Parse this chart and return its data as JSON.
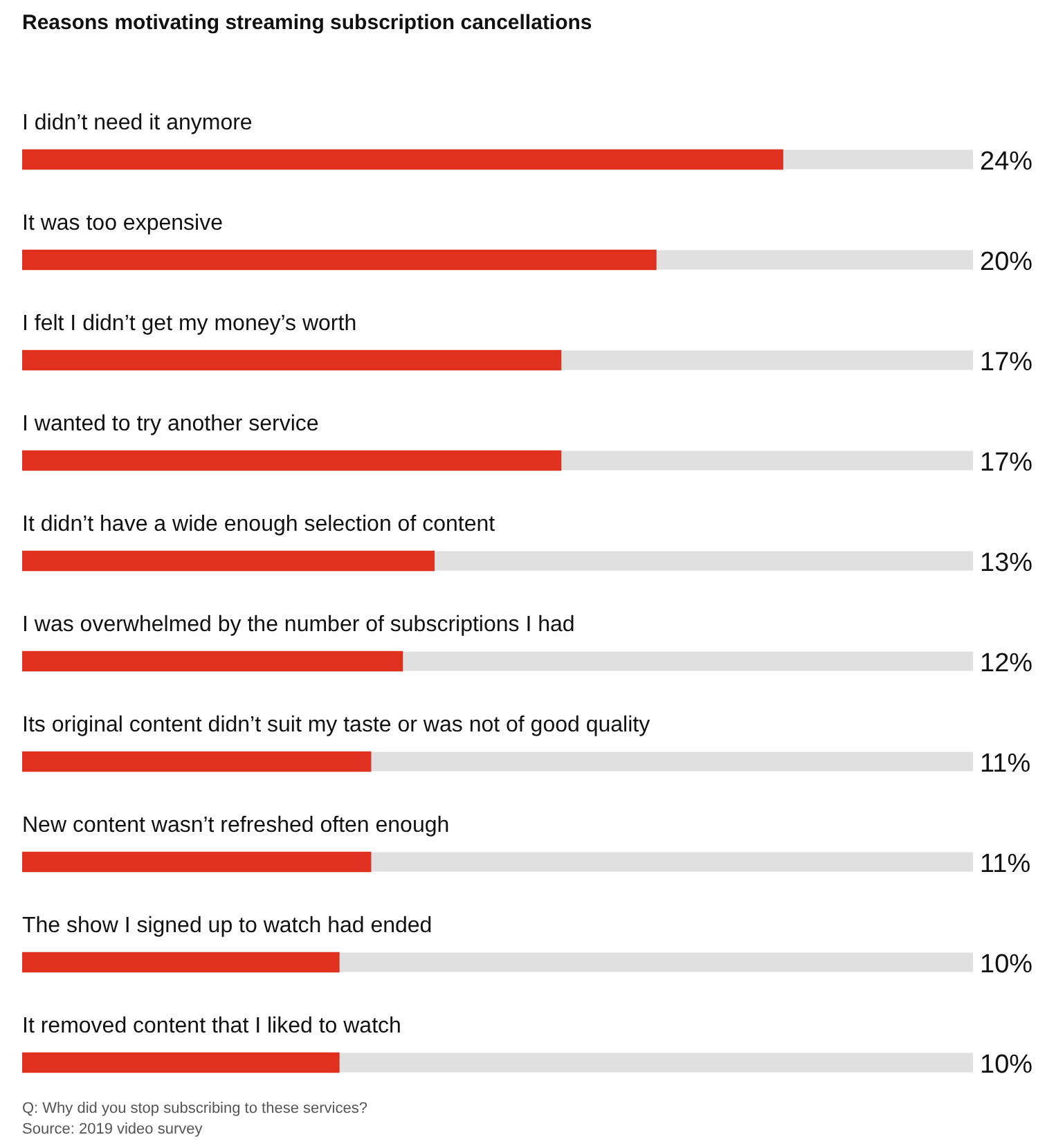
{
  "chart_data": {
    "type": "bar",
    "orientation": "horizontal",
    "title": "Reasons motivating streaming subscription cancellations",
    "categories": [
      "I didn’t need it anymore",
      "It was too expensive",
      "I felt I didn’t get my money’s worth",
      "I wanted to try another service",
      "It didn’t have a wide enough selection of content",
      "I was overwhelmed by the number of subscriptions I had",
      "Its original content didn’t suit my taste or was not of good quality",
      "New content wasn’t refreshed often enough",
      "The show I signed up to watch had ended",
      "It removed content that I liked to watch"
    ],
    "values": [
      24,
      20,
      17,
      17,
      13,
      12,
      11,
      11,
      10,
      10
    ],
    "value_labels": [
      "24%",
      "20%",
      "17%",
      "17%",
      "13%",
      "12%",
      "11%",
      "11%",
      "10%",
      "10%"
    ],
    "color": "#e0301e",
    "xlim": [
      0,
      30
    ],
    "tick_labels": false,
    "legend": false,
    "annotations": [
      "Q: Why did you stop subscribing to these services?",
      "Source: 2019 video survey"
    ]
  }
}
